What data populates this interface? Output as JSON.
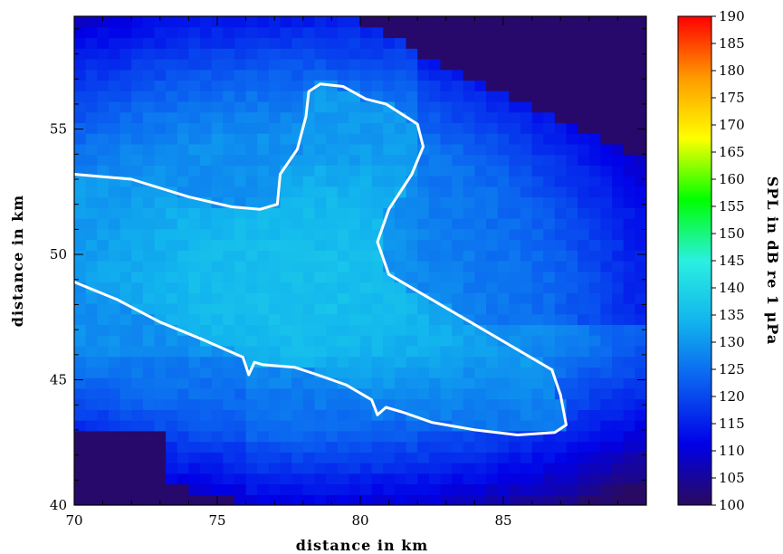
{
  "chart_data": {
    "type": "heatmap",
    "title": "",
    "xlabel": "distance in km",
    "ylabel": "distance in km",
    "xlim": [
      70,
      90
    ],
    "ylim": [
      40,
      59.5
    ],
    "x_ticks": [
      70,
      75,
      80,
      85
    ],
    "y_ticks": [
      40,
      45,
      50,
      55
    ],
    "colorbar": {
      "label": "SPL in dB re 1 μPa",
      "min": 100,
      "max": 190,
      "ticks": [
        100,
        105,
        110,
        115,
        120,
        125,
        130,
        135,
        140,
        145,
        150,
        155,
        160,
        165,
        170,
        175,
        180,
        185,
        190
      ],
      "colors": [
        "#2a0a5e",
        "#0000e8",
        "#0a5cf0",
        "#12b4ee",
        "#2af0e0",
        "#00ff00",
        "#ffff00",
        "#ff9900",
        "#ff0000"
      ]
    },
    "grid": false,
    "field_description_levels": {
      "peak_level_db": 136,
      "peak_x": 78,
      "peak_y": 49,
      "background_level_db": 100
    },
    "contour_level_db": 130,
    "contour": [
      [
        70,
        53.2
      ],
      [
        72,
        53.0
      ],
      [
        74,
        52.3
      ],
      [
        75.5,
        51.9
      ],
      [
        76.5,
        51.8
      ],
      [
        77.1,
        52.0
      ],
      [
        77.2,
        53.2
      ],
      [
        77.8,
        54.2
      ],
      [
        78.1,
        55.5
      ],
      [
        78.2,
        56.5
      ],
      [
        78.6,
        56.8
      ],
      [
        79.4,
        56.7
      ],
      [
        80.2,
        56.2
      ],
      [
        80.9,
        56.0
      ],
      [
        82.0,
        55.2
      ],
      [
        82.2,
        54.3
      ],
      [
        81.8,
        53.2
      ],
      [
        81.0,
        51.8
      ],
      [
        80.6,
        50.5
      ],
      [
        81.0,
        49.2
      ],
      [
        82.5,
        48.2
      ],
      [
        84.0,
        47.2
      ],
      [
        85.5,
        46.2
      ],
      [
        86.7,
        45.4
      ],
      [
        87.0,
        44.4
      ],
      [
        87.2,
        43.2
      ],
      [
        86.8,
        42.9
      ],
      [
        85.5,
        42.8
      ],
      [
        84.0,
        43.0
      ],
      [
        82.5,
        43.3
      ],
      [
        81.5,
        43.7
      ],
      [
        80.9,
        43.9
      ],
      [
        80.6,
        43.6
      ],
      [
        80.4,
        44.2
      ],
      [
        79.5,
        44.8
      ],
      [
        78.5,
        45.2
      ],
      [
        77.7,
        45.5
      ],
      [
        76.6,
        45.6
      ],
      [
        76.3,
        45.7
      ],
      [
        76.1,
        45.2
      ],
      [
        75.9,
        45.9
      ],
      [
        74.5,
        46.6
      ],
      [
        73.0,
        47.3
      ],
      [
        71.5,
        48.2
      ],
      [
        70,
        48.9
      ]
    ]
  }
}
